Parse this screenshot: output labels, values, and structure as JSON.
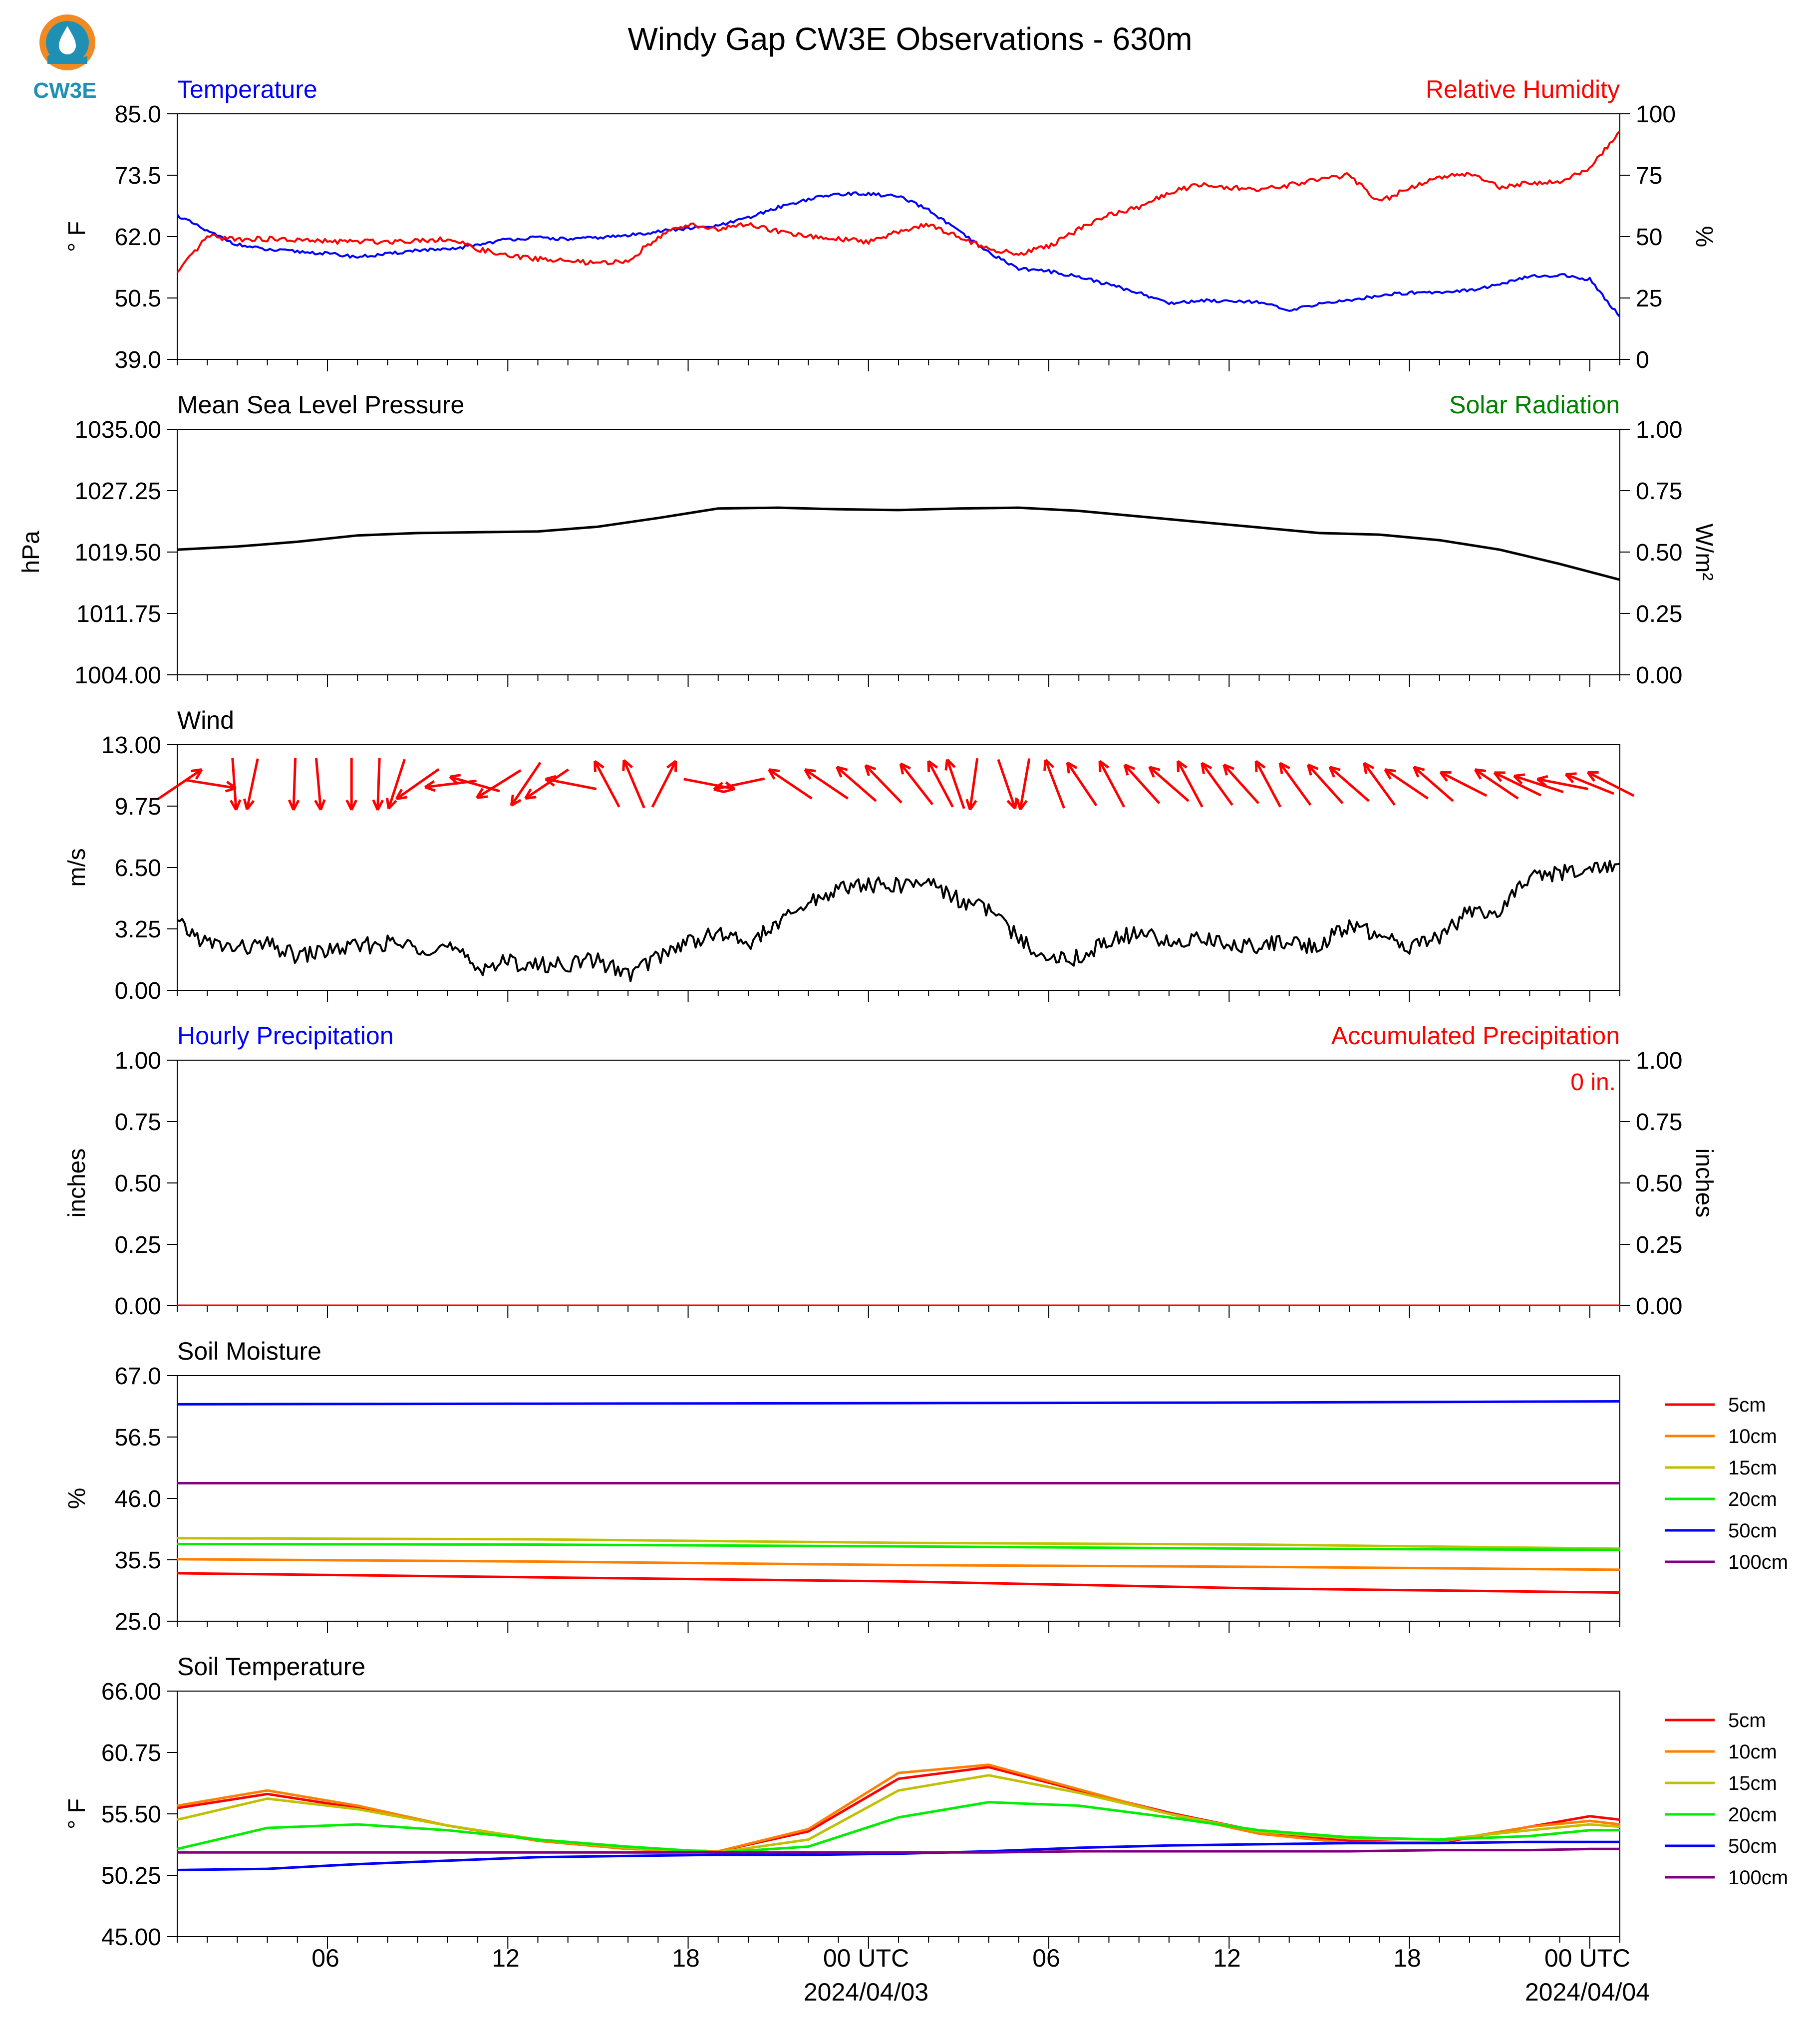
{
  "figure": {
    "title": "Windy Gap CW3E Observations - 630m",
    "logo_text": "CW3E",
    "colors": {
      "blue": "#0000ff",
      "red": "#ff0000",
      "green": "#008000",
      "black": "#000000",
      "logo": "#1f8fb4",
      "logo_orange": "#f08a24"
    }
  },
  "time_axis": {
    "tick_labels": [
      "06",
      "12",
      "18",
      "00 UTC",
      "06",
      "12",
      "18",
      "00 UTC"
    ],
    "date_labels": [
      "2024/04/03",
      "2024/04/04"
    ]
  },
  "chart_data": [
    {
      "id": "temp_rh",
      "type": "line",
      "title_left": "Temperature",
      "title_right": "Relative Humidity",
      "ylabel_left": "° F",
      "ylabel_right": "%",
      "ylim": [
        39,
        85
      ],
      "yticks": [
        "85.0",
        "73.5",
        "62.0",
        "50.5",
        "39.0"
      ],
      "ylim_right": [
        0,
        100
      ],
      "yticks_right": [
        "100",
        "75",
        "50",
        "25",
        "0"
      ],
      "x_hours": [
        0,
        1,
        2,
        3,
        4,
        5,
        6,
        7,
        8,
        9,
        10,
        11,
        12,
        13,
        14,
        15,
        16,
        17,
        18,
        19,
        20,
        21,
        22,
        23,
        24,
        25,
        26,
        27,
        28,
        29,
        30,
        31,
        32,
        33,
        34,
        35,
        36,
        37,
        38,
        39,
        40,
        41,
        42,
        43,
        44,
        45,
        46,
        47,
        48
      ],
      "series": [
        {
          "name": "Temperature",
          "axis": "left",
          "color": "#0000ff",
          "values": [
            66,
            63,
            60.5,
            59.5,
            59.2,
            58.8,
            58.2,
            58.7,
            59.5,
            59.5,
            60.5,
            61.5,
            61.8,
            61.5,
            61.8,
            62.2,
            63,
            63.5,
            64,
            65.5,
            67.5,
            69,
            70,
            70,
            69.5,
            67,
            63,
            59,
            56,
            55.5,
            54.5,
            53,
            51.5,
            49.5,
            50,
            50,
            49.8,
            48,
            49.5,
            50,
            51,
            51.5,
            51.6,
            52,
            53,
            54.5,
            54.8,
            54,
            47
          ]
        },
        {
          "name": "Relative Humidity",
          "axis": "right",
          "color": "#ff0000",
          "values": [
            35,
            50,
            49,
            49,
            48.5,
            48,
            48,
            48,
            48.5,
            49,
            45,
            42,
            41,
            40,
            39,
            40,
            50,
            55,
            53,
            55,
            52,
            50,
            49,
            48,
            52,
            55,
            50,
            45,
            43,
            46,
            53,
            59,
            62,
            68,
            71,
            70,
            69,
            71,
            73,
            75,
            64,
            70,
            74,
            76,
            70,
            72,
            72,
            78,
            93
          ]
        }
      ]
    },
    {
      "id": "pressure",
      "type": "line",
      "title_left": "Mean Sea Level Pressure",
      "title_right": "Solar Radiation",
      "ylabel_left": "hPa",
      "ylabel_right": "W/m²",
      "ylim": [
        1004,
        1035
      ],
      "yticks": [
        "1035.00",
        "1027.25",
        "1019.50",
        "1011.75",
        "1004.00"
      ],
      "ylim_right": [
        0,
        1
      ],
      "yticks_right": [
        "1.00",
        "0.75",
        "0.50",
        "0.25",
        "0.00"
      ],
      "x_hours": [
        0,
        2,
        4,
        6,
        8,
        10,
        12,
        14,
        16,
        18,
        20,
        22,
        24,
        26,
        28,
        30,
        32,
        34,
        36,
        38,
        40,
        42,
        44,
        46,
        48
      ],
      "series": [
        {
          "name": "Mean Sea Level Pressure",
          "axis": "left",
          "color": "#000000",
          "values": [
            1019.8,
            1020.2,
            1020.8,
            1021.6,
            1021.9,
            1022,
            1022.1,
            1022.7,
            1023.8,
            1025,
            1025.1,
            1024.9,
            1024.8,
            1025,
            1025.1,
            1024.7,
            1024,
            1023.3,
            1022.6,
            1021.9,
            1021.7,
            1021,
            1019.8,
            1018,
            1016
          ]
        }
      ]
    },
    {
      "id": "wind",
      "type": "line",
      "title_left": "Wind",
      "ylabel_left": "m/s",
      "ylim": [
        0,
        13
      ],
      "yticks": [
        "13.00",
        "9.75",
        "6.50",
        "3.25",
        "0.00"
      ],
      "x_hours": [
        0,
        1,
        2,
        3,
        4,
        5,
        6,
        7,
        8,
        9,
        10,
        11,
        12,
        13,
        14,
        15,
        16,
        17,
        18,
        19,
        20,
        21,
        22,
        23,
        24,
        25,
        26,
        27,
        28,
        29,
        30,
        31,
        32,
        33,
        34,
        35,
        36,
        37,
        38,
        39,
        40,
        41,
        42,
        43,
        44,
        45,
        46,
        47,
        48
      ],
      "series": [
        {
          "name": "Wind Speed",
          "axis": "left",
          "color": "#000000",
          "values": [
            3.5,
            2.5,
            2.2,
            2.4,
            1.8,
            2.1,
            2.3,
            2.5,
            2.3,
            2.3,
            1.2,
            1.5,
            1.3,
            1.4,
            1.6,
            0.8,
            1.8,
            2.6,
            3,
            2.5,
            3.5,
            4.6,
            5.4,
            5.6,
            5.5,
            5.8,
            4.8,
            4.3,
            2.7,
            1.8,
            1.7,
            2.7,
            3,
            2.5,
            2.8,
            2.4,
            2.4,
            2.6,
            2.3,
            3.5,
            2.8,
            2.3,
            2.9,
            4.2,
            4.1,
            6,
            6.2,
            6.4,
            6.7
          ]
        }
      ],
      "barbs": [
        {
          "h": 0.1,
          "dir": 236
        },
        {
          "h": 1.1,
          "dir": 279
        },
        {
          "h": 1.9,
          "dir": 356
        },
        {
          "h": 2.5,
          "dir": 12
        },
        {
          "h": 3.9,
          "dir": 2
        },
        {
          "h": 4.7,
          "dir": 355
        },
        {
          "h": 5.8,
          "dir": 0
        },
        {
          "h": 6.7,
          "dir": 2
        },
        {
          "h": 7.3,
          "dir": 18
        },
        {
          "h": 8.0,
          "dir": 55
        },
        {
          "h": 9.1,
          "dir": 83
        },
        {
          "h": 9.9,
          "dir": 106
        },
        {
          "h": 10.7,
          "dir": 58
        },
        {
          "h": 11.6,
          "dir": 34
        },
        {
          "h": 12.3,
          "dir": 56
        },
        {
          "h": 13.1,
          "dir": 101
        },
        {
          "h": 14.3,
          "dir": 152
        },
        {
          "h": 15.2,
          "dir": 157
        },
        {
          "h": 16.2,
          "dir": 207
        },
        {
          "h": 17.7,
          "dir": 281
        },
        {
          "h": 18.7,
          "dir": 78
        },
        {
          "h": 20.4,
          "dir": 124
        },
        {
          "h": 21.6,
          "dir": 124
        },
        {
          "h": 22.6,
          "dir": 131
        },
        {
          "h": 23.5,
          "dir": 136
        },
        {
          "h": 24.6,
          "dir": 142
        },
        {
          "h": 25.4,
          "dir": 152
        },
        {
          "h": 25.9,
          "dir": 161
        },
        {
          "h": 26.5,
          "dir": 8
        },
        {
          "h": 27.6,
          "dir": 341
        },
        {
          "h": 28.2,
          "dir": 10
        },
        {
          "h": 29.2,
          "dir": 159
        },
        {
          "h": 30.1,
          "dir": 146
        },
        {
          "h": 31.1,
          "dir": 152
        },
        {
          "h": 32.1,
          "dir": 138
        },
        {
          "h": 33.0,
          "dir": 131
        },
        {
          "h": 33.7,
          "dir": 152
        },
        {
          "h": 34.6,
          "dir": 144
        },
        {
          "h": 35.4,
          "dir": 138
        },
        {
          "h": 36.3,
          "dir": 152
        },
        {
          "h": 37.2,
          "dir": 144
        },
        {
          "h": 38.2,
          "dir": 138
        },
        {
          "h": 39.0,
          "dir": 131
        },
        {
          "h": 40.0,
          "dir": 144
        },
        {
          "h": 40.9,
          "dir": 124
        },
        {
          "h": 41.8,
          "dir": 131
        },
        {
          "h": 42.8,
          "dir": 117
        },
        {
          "h": 43.9,
          "dir": 124
        },
        {
          "h": 44.6,
          "dir": 116
        },
        {
          "h": 45.3,
          "dir": 108
        },
        {
          "h": 46.1,
          "dir": 101
        },
        {
          "h": 47.0,
          "dir": 112
        },
        {
          "h": 47.7,
          "dir": 117
        }
      ]
    },
    {
      "id": "precip",
      "type": "line",
      "title_left": "Hourly Precipitation",
      "title_right": "Accumulated Precipitation",
      "ylabel_left": "inches",
      "ylabel_right": "inches",
      "ylim": [
        0,
        1
      ],
      "yticks": [
        "1.00",
        "0.75",
        "0.50",
        "0.25",
        "0.00"
      ],
      "ylim_right": [
        0,
        1
      ],
      "yticks_right": [
        "1.00",
        "0.75",
        "0.50",
        "0.25",
        "0.00"
      ],
      "annotation": "0 in.",
      "x_hours": [
        0,
        48
      ],
      "series": [
        {
          "name": "Hourly Precipitation",
          "axis": "left",
          "color": "#0000ff",
          "values": [
            0,
            0
          ]
        },
        {
          "name": "Accumulated Precipitation",
          "axis": "right",
          "color": "#ff0000",
          "values": [
            0,
            0
          ]
        }
      ]
    },
    {
      "id": "soil_moisture",
      "type": "line",
      "title_left": "Soil Moisture",
      "ylabel_left": "%",
      "ylim": [
        25,
        67
      ],
      "yticks": [
        "67.0",
        "56.5",
        "46.0",
        "35.5",
        "25.0"
      ],
      "x_hours": [
        0,
        12,
        24,
        36,
        48
      ],
      "legend_position": "right",
      "series": [
        {
          "name": "5cm",
          "color": "#ff0000",
          "values": [
            33.2,
            32.5,
            31.8,
            30.6,
            29.9
          ]
        },
        {
          "name": "10cm",
          "color": "#ff8000",
          "values": [
            35.6,
            35.2,
            34.6,
            34.3,
            33.8
          ]
        },
        {
          "name": "15cm",
          "color": "#c0c000",
          "values": [
            39.2,
            39,
            38.4,
            38.1,
            37.4
          ]
        },
        {
          "name": "20cm",
          "color": "#00ee00",
          "values": [
            38.2,
            38.1,
            37.8,
            37.4,
            37.2
          ]
        },
        {
          "name": "50cm",
          "color": "#0000ff",
          "values": [
            62.1,
            62.2,
            62.3,
            62.4,
            62.6
          ]
        },
        {
          "name": "100cm",
          "color": "#800080",
          "values": [
            48.6,
            48.6,
            48.6,
            48.6,
            48.6
          ]
        }
      ]
    },
    {
      "id": "soil_temperature",
      "type": "line",
      "title_left": "Soil Temperature",
      "ylabel_left": "° F",
      "ylim": [
        45,
        66
      ],
      "yticks": [
        "66.00",
        "60.75",
        "55.50",
        "50.25",
        "45.00"
      ],
      "x_hours": [
        0,
        3,
        6,
        9,
        12,
        15,
        18,
        21,
        24,
        27,
        30,
        33,
        36,
        39,
        42,
        45,
        47,
        48
      ],
      "legend_position": "right",
      "series": [
        {
          "name": "5cm",
          "color": "#ff0000",
          "values": [
            56,
            57.2,
            56,
            54.5,
            53.2,
            52.5,
            52.3,
            54,
            58.5,
            59.5,
            57.5,
            55.6,
            54,
            53.2,
            53,
            54.4,
            55.3,
            55
          ]
        },
        {
          "name": "10cm",
          "color": "#ff8000",
          "values": [
            56.2,
            57.5,
            56.2,
            54.5,
            53.2,
            52.5,
            52.3,
            54.2,
            59,
            59.7,
            57.6,
            55.5,
            53.8,
            53,
            53.1,
            54.4,
            54.9,
            54.6
          ]
        },
        {
          "name": "15cm",
          "color": "#c0c000",
          "values": [
            55,
            56.8,
            55.9,
            54.5,
            53.3,
            52.6,
            52.2,
            53.3,
            57.5,
            58.8,
            57.3,
            55.5,
            54,
            53.4,
            53.3,
            54.1,
            54.6,
            54.4
          ]
        },
        {
          "name": "20cm",
          "color": "#00ee00",
          "values": [
            52.5,
            54.3,
            54.6,
            54.1,
            53.3,
            52.7,
            52.2,
            52.7,
            55.2,
            56.5,
            56.2,
            55.2,
            54.1,
            53.5,
            53.3,
            53.6,
            54.1,
            54.1
          ]
        },
        {
          "name": "50cm",
          "color": "#0000ff",
          "values": [
            50.7,
            50.8,
            51.2,
            51.5,
            51.8,
            51.9,
            52,
            52,
            52.1,
            52.3,
            52.6,
            52.8,
            52.9,
            53,
            53,
            53.1,
            53.1,
            53.1
          ]
        },
        {
          "name": "100cm",
          "color": "#800080",
          "values": [
            52.2,
            52.2,
            52.2,
            52.2,
            52.2,
            52.2,
            52.2,
            52.2,
            52.2,
            52.2,
            52.3,
            52.3,
            52.3,
            52.3,
            52.4,
            52.4,
            52.5,
            52.5
          ]
        }
      ]
    }
  ]
}
